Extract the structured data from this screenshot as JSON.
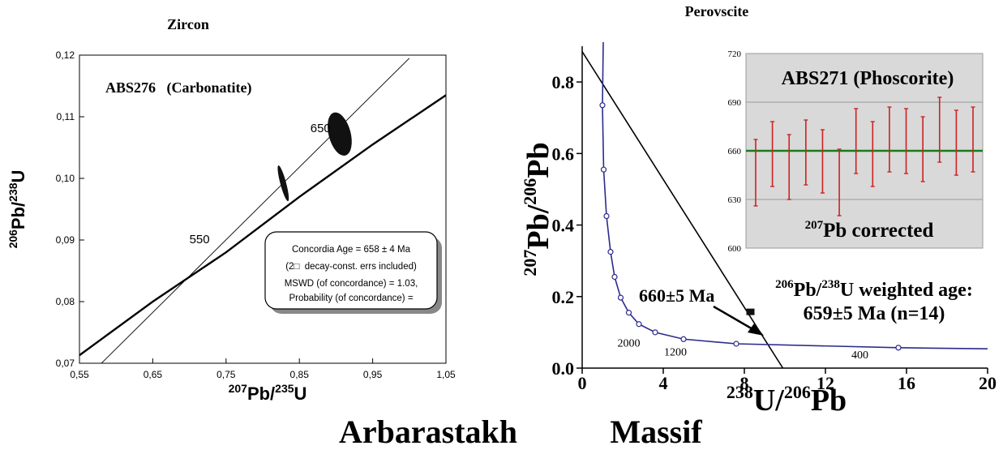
{
  "figure": {
    "caption_left": "Arbarastakh",
    "caption_right": "Massif"
  },
  "chart_data": [
    {
      "type": "line",
      "title": "Zircon",
      "sample_label": "ABS276   (Carbonatite)",
      "xlabel_base": "Pb/",
      "xlabel_parts": {
        "sup1": "207",
        "base1": "Pb/",
        "sup2": "235",
        "base2": "U"
      },
      "ylabel_parts": {
        "sup1": "206",
        "base1": "Pb/",
        "sup2": "238",
        "base2": "U"
      },
      "xlim": [
        0.55,
        1.05
      ],
      "ylim": [
        0.07,
        0.12
      ],
      "x_ticks": [
        "0,55",
        "0,65",
        "0,75",
        "0,85",
        "0,95",
        "1,05"
      ],
      "y_ticks": [
        "0,07",
        "0,08",
        "0,09",
        "0,10",
        "0,11",
        "0,12"
      ],
      "x_tick_values": [
        0.55,
        0.65,
        0.75,
        0.85,
        0.95,
        1.05
      ],
      "y_tick_values": [
        0.07,
        0.08,
        0.09,
        0.1,
        0.11,
        0.12
      ],
      "concordia_labels": [
        {
          "text": "550",
          "x": 0.7,
          "y": 0.0895
        },
        {
          "text": "650",
          "x": 0.865,
          "y": 0.1075
        }
      ],
      "concordia_curve": {
        "x": [
          0.55,
          0.65,
          0.75,
          0.85,
          0.95,
          1.05
        ],
        "y": [
          0.0713,
          0.08,
          0.088,
          0.097,
          0.1055,
          0.1135
        ]
      },
      "discordia_line": {
        "x": [
          0.58,
          1.0
        ],
        "y": [
          0.07,
          0.1195
        ]
      },
      "ellipses": [
        {
          "x": 0.905,
          "y": 0.1072,
          "rx": 0.015,
          "ry": 0.0006
        },
        {
          "x": 0.828,
          "y": 0.0992,
          "rx": 0.004,
          "ry": 0.0005
        }
      ],
      "result_box": [
        "Concordia Age = 658 ± 4 Ma",
        "(2□  decay-const. errs included)",
        "MSWD (of concordance) = 1.03,",
        "Probability (of concordance) ="
      ]
    },
    {
      "type": "line",
      "title": "Perovscite",
      "xlabel_parts": {
        "sup1": "238",
        "base1": "U/",
        "sup2": "206",
        "base2": "Pb"
      },
      "ylabel_parts": {
        "sup1": "207",
        "base1": "Pb/",
        "sup2": "206",
        "base2": "Pb"
      },
      "xlim": [
        0,
        20
      ],
      "ylim": [
        0,
        0.9
      ],
      "x_ticks": [
        "0",
        "4",
        "8",
        "12",
        "16",
        "20"
      ],
      "y_ticks": [
        "0.0",
        "0.2",
        "0.4",
        "0.6",
        "0.8"
      ],
      "x_tick_values": [
        0,
        4,
        8,
        12,
        16,
        20
      ],
      "y_tick_values": [
        0,
        0.2,
        0.4,
        0.6,
        0.8
      ],
      "concordia_points": {
        "x": [
          1.0,
          1.06,
          1.2,
          1.4,
          1.6,
          1.9,
          2.3,
          2.8,
          3.6,
          5.0,
          7.6,
          15.6
        ],
        "y": [
          0.735,
          0.555,
          0.425,
          0.325,
          0.255,
          0.197,
          0.155,
          0.123,
          0.1,
          0.081,
          0.068,
          0.057
        ]
      },
      "age_labels": [
        {
          "text": "2000",
          "x": 2.3,
          "y": 0.06
        },
        {
          "text": "1200",
          "x": 4.6,
          "y": 0.035
        },
        {
          "text": "400",
          "x": 13.7,
          "y": 0.027
        }
      ],
      "regression_line": {
        "x": [
          0,
          9.9
        ],
        "y": [
          0.885,
          0
        ]
      },
      "data_cluster": {
        "x": 8.3,
        "y": 0.155
      },
      "annotation_age": "660±5 Ma",
      "weighted_label": {
        "sup": "206",
        "mid": "Pb/",
        "sup2": "238",
        "rest": "U weighted age:"
      },
      "weighted_value": "659±5 Ma (n=14)",
      "inset": {
        "title": "ABS271 (Phoscorite)",
        "subtitle_sup": "207",
        "subtitle": "Pb corrected",
        "ylim": [
          600,
          720
        ],
        "y_ticks": [
          "600",
          "630",
          "660",
          "690",
          "720"
        ],
        "y_tick_values": [
          600,
          630,
          660,
          690,
          720
        ],
        "mean": 660,
        "mean_color": "#1a7a1a",
        "bar_color": "#cc2222",
        "bars": [
          {
            "low": 626,
            "high": 667
          },
          {
            "low": 638,
            "high": 678
          },
          {
            "low": 630,
            "high": 670
          },
          {
            "low": 639,
            "high": 679
          },
          {
            "low": 634,
            "high": 673
          },
          {
            "low": 620,
            "high": 661
          },
          {
            "low": 646,
            "high": 686
          },
          {
            "low": 638,
            "high": 678
          },
          {
            "low": 647,
            "high": 687
          },
          {
            "low": 646,
            "high": 686
          },
          {
            "low": 641,
            "high": 681
          },
          {
            "low": 653,
            "high": 693
          },
          {
            "low": 645,
            "high": 685
          },
          {
            "low": 647,
            "high": 687
          }
        ]
      }
    }
  ]
}
